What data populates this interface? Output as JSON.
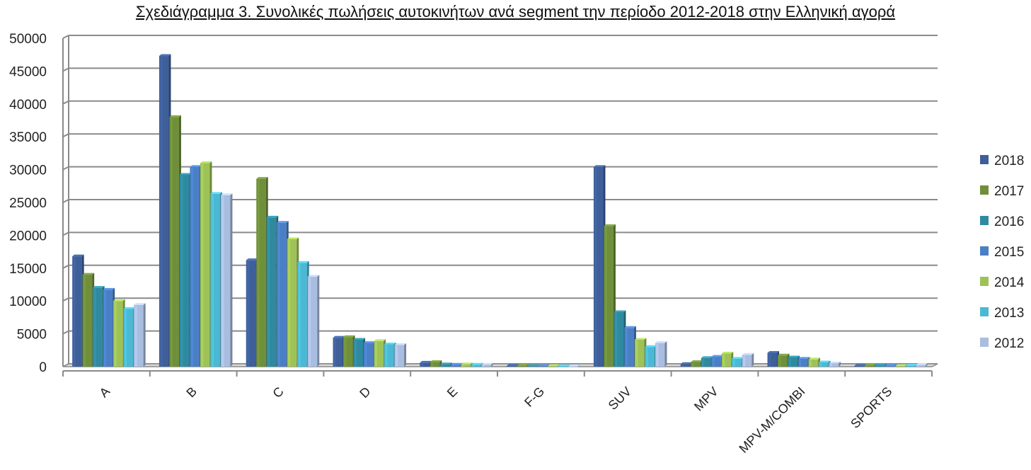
{
  "chart_data": {
    "type": "bar",
    "title": "Σχεδιάγραμμα 3. Συνολικές πωλήσεις αυτοκινήτων ανά segment την περίοδο 2012-2018 στην Ελληνική αγορά",
    "xlabel": "",
    "ylabel": "",
    "ylim": [
      0,
      50000
    ],
    "yticks": [
      0,
      5000,
      10000,
      15000,
      20000,
      25000,
      30000,
      35000,
      40000,
      45000,
      50000
    ],
    "grid": true,
    "legend_position": "right",
    "categories": [
      "A",
      "B",
      "C",
      "D",
      "E",
      "F-G",
      "SUV",
      "MPV",
      "MPV-M/COMBI",
      "SPORTS"
    ],
    "series": [
      {
        "name": "2018",
        "color": "#3e5f9a",
        "values": [
          16800,
          47300,
          16200,
          4400,
          600,
          150,
          30400,
          400,
          2100,
          150
        ]
      },
      {
        "name": "2017",
        "color": "#6f8f3a",
        "values": [
          14000,
          38000,
          28600,
          4500,
          700,
          150,
          21400,
          700,
          1700,
          200
        ]
      },
      {
        "name": "2016",
        "color": "#2f8aa0",
        "values": [
          12000,
          29200,
          22700,
          4100,
          350,
          100,
          8300,
          1300,
          1400,
          200
        ]
      },
      {
        "name": "2015",
        "color": "#4a7fc5",
        "values": [
          11700,
          30400,
          21900,
          3600,
          300,
          100,
          5900,
          1500,
          1200,
          150
        ]
      },
      {
        "name": "2014",
        "color": "#9ec258",
        "values": [
          10000,
          31000,
          19400,
          3900,
          350,
          100,
          4100,
          2000,
          1100,
          100
        ]
      },
      {
        "name": "2013",
        "color": "#4bb9d3",
        "values": [
          8800,
          26300,
          15800,
          3400,
          300,
          50,
          3000,
          1200,
          650,
          150
        ]
      },
      {
        "name": "2012",
        "color": "#a9bde0",
        "values": [
          9400,
          26100,
          13700,
          3300,
          300,
          50,
          3600,
          1800,
          500,
          250
        ]
      }
    ]
  }
}
